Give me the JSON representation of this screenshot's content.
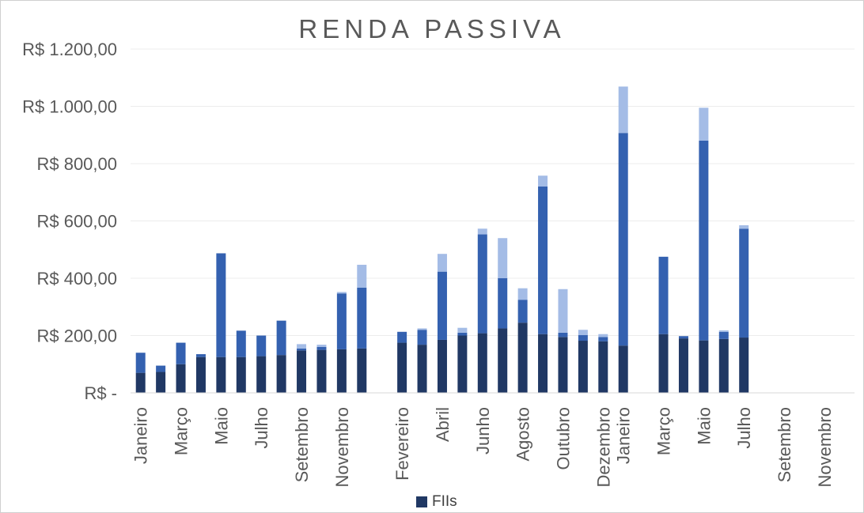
{
  "chart_data": {
    "type": "bar",
    "stacked": true,
    "title": "RENDA PASSIVA",
    "xlabel": "",
    "ylabel": "",
    "ylim": [
      0,
      1200
    ],
    "yticks": [
      {
        "value": 0,
        "label": "R$ -"
      },
      {
        "value": 200,
        "label": "R$ 200,00"
      },
      {
        "value": 400,
        "label": "R$ 400,00"
      },
      {
        "value": 600,
        "label": "R$ 600,00"
      },
      {
        "value": 800,
        "label": "R$ 800,00"
      },
      {
        "value": 1000,
        "label": "R$ 1.000,00"
      },
      {
        "value": 1200,
        "label": "R$ 1.200,00"
      }
    ],
    "grid": true,
    "legend_position": "bottom",
    "categories": [
      "Janeiro",
      "Fevereiro",
      "Março",
      "Abril",
      "Maio",
      "Junho",
      "Julho",
      "Agosto",
      "Setembro",
      "Outubro",
      "Novembro",
      "Dezembro",
      "Janeiro",
      "Fevereiro",
      "Março",
      "Abril",
      "Maio",
      "Junho",
      "Julho",
      "Agosto",
      "Setembro",
      "Outubro",
      "Novembro",
      "Dezembro",
      "Janeiro",
      "Fevereiro",
      "Março",
      "Abril",
      "Maio",
      "Junho",
      "Julho",
      "Agosto",
      "Setembro",
      "Outubro",
      "Novembro",
      "Dezembro"
    ],
    "visible_tick_indices": [
      0,
      2,
      4,
      6,
      8,
      10,
      13,
      15,
      17,
      19,
      21,
      23,
      24,
      26,
      28,
      30,
      32,
      34
    ],
    "series": [
      {
        "name": "FIIs",
        "color": "#203864",
        "values": [
          70,
          73,
          100,
          125,
          125,
          125,
          128,
          132,
          148,
          150,
          152,
          155,
          0,
          175,
          168,
          185,
          200,
          208,
          225,
          245,
          205,
          195,
          182,
          180,
          165,
          0,
          205,
          190,
          183,
          188,
          193,
          0,
          0,
          0,
          0,
          0
        ]
      },
      {
        "color": "#3461b0",
        "values": [
          70,
          22,
          75,
          10,
          362,
          92,
          72,
          120,
          7,
          10,
          195,
          212,
          0,
          38,
          52,
          238,
          10,
          345,
          175,
          80,
          515,
          15,
          20,
          15,
          742,
          0,
          270,
          8,
          697,
          25,
          380,
          0,
          0,
          0,
          0,
          0
        ]
      },
      {
        "color": "#a4bce6",
        "values": [
          0,
          0,
          0,
          0,
          0,
          0,
          0,
          0,
          15,
          8,
          5,
          80,
          0,
          0,
          5,
          62,
          17,
          20,
          140,
          40,
          38,
          152,
          18,
          10,
          162,
          0,
          0,
          0,
          115,
          5,
          12,
          0,
          0,
          0,
          0,
          0
        ]
      }
    ]
  },
  "legend": {
    "label": "FIIs",
    "color": "#203864"
  }
}
